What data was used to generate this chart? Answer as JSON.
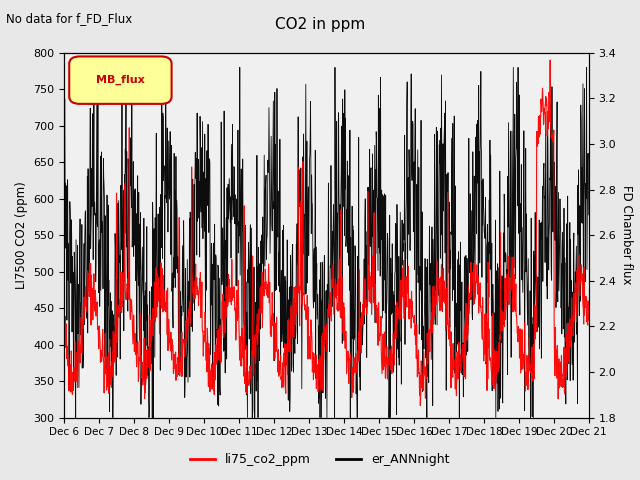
{
  "title": "CO2 in ppm",
  "subtitle": "No data for f_FD_Flux",
  "left_ylabel": "LI7500 CO2 (ppm)",
  "right_ylabel": "FD Chamber flux",
  "left_ylim": [
    300,
    800
  ],
  "right_ylim": [
    1.8,
    3.4
  ],
  "left_yticks": [
    300,
    350,
    400,
    450,
    500,
    550,
    600,
    650,
    700,
    750,
    800
  ],
  "right_yticks": [
    1.8,
    2.0,
    2.2,
    2.4,
    2.6,
    2.8,
    3.0,
    3.2,
    3.4
  ],
  "xtick_labels": [
    "Dec 6",
    "Dec 7",
    "Dec 8",
    "Dec 9",
    "Dec 10",
    "Dec 11",
    "Dec 12",
    "Dec 13",
    "Dec 14",
    "Dec 15",
    "Dec 16",
    "Dec 17",
    "Dec 18",
    "Dec 19",
    "Dec 20",
    "Dec 21"
  ],
  "legend_entries": [
    "li75_co2_ppm",
    "er_ANNnight"
  ],
  "line1_color": "red",
  "line2_color": "black",
  "background_color": "#e8e8e8",
  "plot_bg_color": "#f0f0f0",
  "mb_flux_text": "MB_flux"
}
